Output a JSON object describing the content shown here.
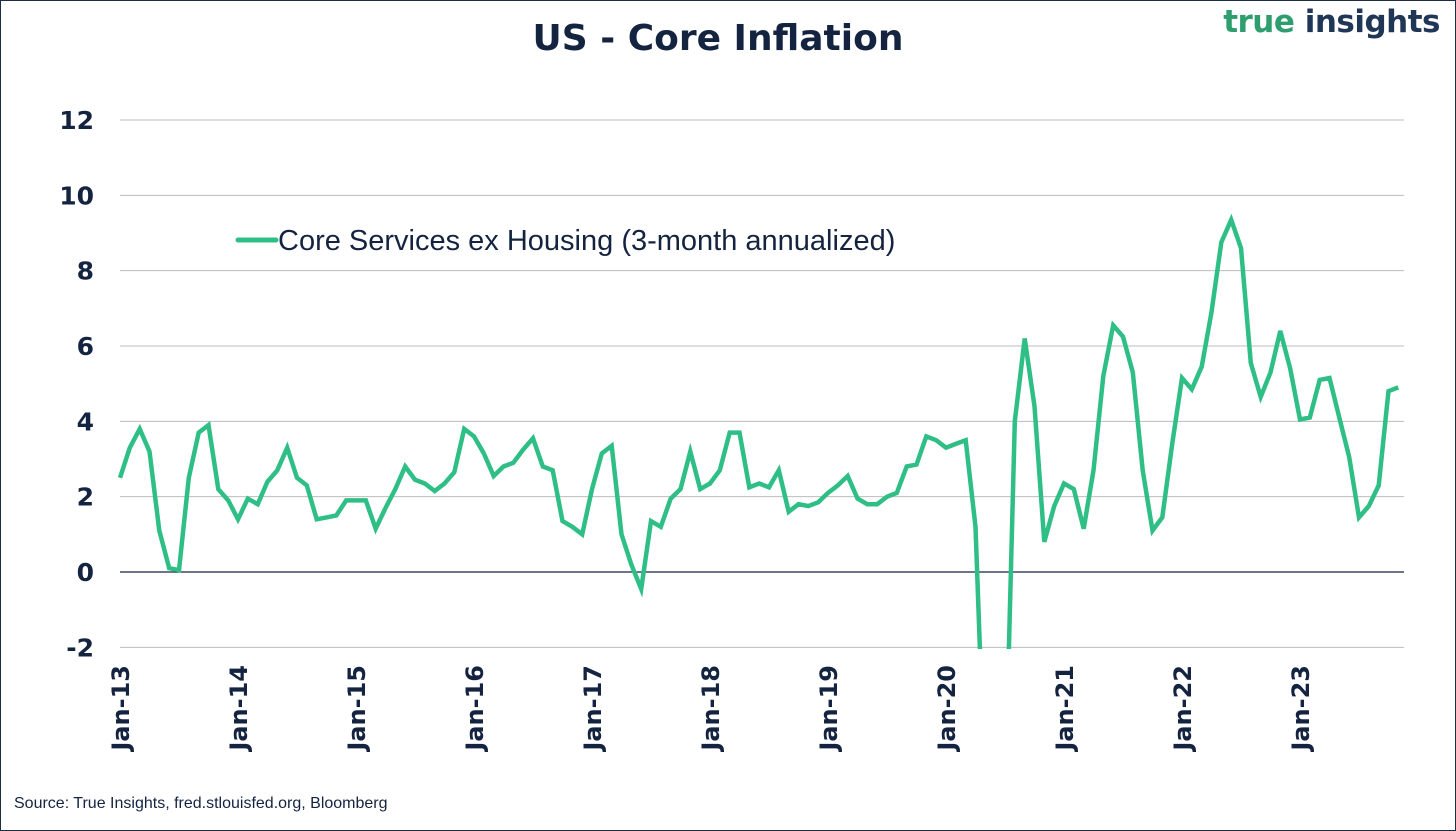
{
  "header": {
    "title": "US - Core Inflation",
    "brand_part1": "true",
    "brand_part2": "insights"
  },
  "footer": {
    "source": "Source: True Insights, fred.stlouisfed.org, Bloomberg"
  },
  "colors": {
    "series": "#2fbf86",
    "text": "#142440",
    "grid": "#bdbdbd",
    "zero_line": "#142440"
  },
  "chart_data": {
    "type": "line",
    "title": "US - Core Inflation",
    "xlabel": "",
    "ylabel": "",
    "ylim": [
      -2,
      12
    ],
    "yticks": [
      -2,
      0,
      2,
      4,
      6,
      8,
      10,
      12
    ],
    "grid": true,
    "legend_position": "top-left",
    "x_start": "Jan-13",
    "x_frequency": "monthly",
    "xtick_labels": [
      "Jan-13",
      "Jan-14",
      "Jan-15",
      "Jan-16",
      "Jan-17",
      "Jan-18",
      "Jan-19",
      "Jan-20",
      "Jan-21",
      "Jan-22",
      "Jan-23"
    ],
    "series": [
      {
        "name": "Core Services ex Housing (3-month annualized)",
        "values": [
          2.5,
          3.3,
          3.8,
          3.2,
          1.1,
          0.1,
          0.05,
          2.5,
          3.7,
          3.9,
          2.2,
          1.9,
          1.4,
          1.95,
          1.8,
          2.4,
          2.7,
          3.3,
          2.5,
          2.3,
          1.4,
          1.45,
          1.5,
          1.9,
          1.9,
          1.9,
          1.15,
          1.7,
          2.2,
          2.8,
          2.45,
          2.35,
          2.15,
          2.35,
          2.65,
          3.8,
          3.6,
          3.15,
          2.55,
          2.8,
          2.9,
          3.25,
          3.55,
          2.8,
          2.7,
          1.35,
          1.2,
          1.0,
          2.2,
          3.15,
          3.35,
          1.0,
          0.2,
          -0.45,
          1.35,
          1.2,
          1.95,
          2.2,
          3.2,
          2.2,
          2.35,
          2.7,
          3.7,
          3.7,
          2.25,
          2.35,
          2.25,
          2.7,
          1.6,
          1.8,
          1.75,
          1.85,
          2.1,
          2.3,
          2.55,
          1.95,
          1.8,
          1.8,
          2.0,
          2.1,
          2.8,
          2.85,
          3.6,
          3.5,
          3.3,
          3.4,
          3.5,
          1.2,
          -6.0,
          -6.0,
          -6.0,
          4.0,
          6.2,
          4.4,
          0.8,
          1.75,
          2.35,
          2.2,
          1.15,
          2.7,
          5.2,
          6.55,
          6.25,
          5.3,
          2.7,
          1.1,
          1.45,
          3.4,
          5.15,
          4.85,
          5.45,
          6.9,
          8.75,
          9.35,
          8.6,
          5.55,
          4.65,
          5.3,
          6.4,
          5.4,
          4.05,
          4.1,
          5.1,
          5.15,
          4.1,
          3.05,
          1.45,
          1.75,
          2.3,
          4.8,
          4.9
        ]
      }
    ]
  }
}
